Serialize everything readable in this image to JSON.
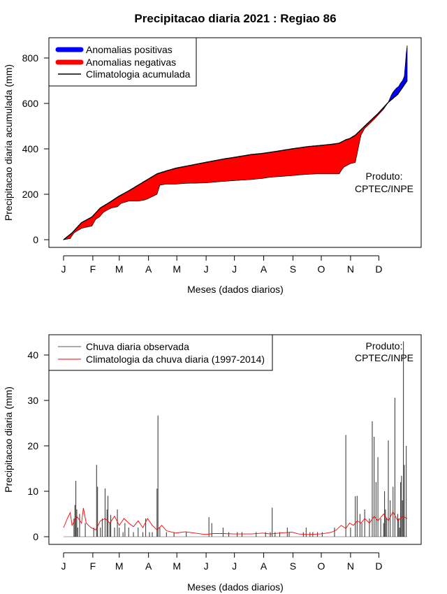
{
  "title": "Precipitacao diaria 2021 : Regiao 86",
  "colors": {
    "positive": "#0000ff",
    "negative": "#ff0000",
    "climatology_line": "#000000",
    "observed_bars": "#000000",
    "daily_climatology": "#ff0000"
  },
  "chart_data": [
    {
      "type": "area",
      "title": "",
      "xlabel": "Meses (dados diarios)",
      "ylabel": "Precipitacao diaria acumulada (mm)",
      "xlim": [
        1,
        365
      ],
      "ylim": [
        0,
        860
      ],
      "x_tick_labels": [
        "J",
        "F",
        "M",
        "A",
        "M",
        "J",
        "J",
        "A",
        "S",
        "O",
        "N",
        "D"
      ],
      "y_ticks": [
        0,
        200,
        400,
        600,
        800
      ],
      "y_tick_labels": [
        "0",
        "200",
        "400",
        "600",
        "800"
      ],
      "legend": [
        "Anomalias positivas",
        "Anomalias negativas",
        "Climatologia acumulada"
      ],
      "legend_position": "top-left",
      "annotation": [
        "Produto:",
        "CPTEC/INPE"
      ],
      "series": [
        {
          "name": "Climatologia acumulada",
          "x": [
            1,
            10,
            20,
            31,
            40,
            50,
            59,
            70,
            80,
            90,
            100,
            110,
            120,
            135,
            151,
            170,
            181,
            200,
            212,
            225,
            243,
            260,
            273,
            285,
            293,
            300,
            304,
            310,
            320,
            334,
            345,
            355,
            365
          ],
          "values": [
            0,
            30,
            75,
            100,
            140,
            165,
            190,
            215,
            240,
            265,
            290,
            303,
            315,
            327,
            340,
            355,
            362,
            375,
            380,
            388,
            400,
            410,
            415,
            420,
            425,
            440,
            445,
            460,
            500,
            555,
            605,
            640,
            700
          ]
        },
        {
          "name": "Chuva acumulada observada",
          "x": [
            1,
            8,
            12,
            20,
            25,
            31,
            35,
            39,
            43,
            47,
            52,
            58,
            62,
            70,
            80,
            87,
            90,
            95,
            100,
            103,
            110,
            120,
            130,
            151,
            165,
            181,
            200,
            212,
            220,
            230,
            243,
            250,
            260,
            270,
            280,
            288,
            293,
            296,
            298,
            305,
            310,
            312,
            316,
            320,
            330,
            340,
            345,
            348,
            350,
            353,
            356,
            358,
            360,
            362,
            363,
            364,
            365
          ],
          "values": [
            0,
            5,
            30,
            50,
            55,
            60,
            90,
            100,
            120,
            130,
            140,
            145,
            160,
            170,
            170,
            175,
            180,
            190,
            200,
            240,
            245,
            245,
            248,
            250,
            255,
            260,
            265,
            270,
            275,
            278,
            282,
            285,
            288,
            290,
            290,
            290,
            290,
            310,
            320,
            335,
            340,
            380,
            460,
            490,
            530,
            575,
            605,
            635,
            650,
            665,
            675,
            690,
            700,
            720,
            770,
            820,
            855
          ]
        }
      ]
    },
    {
      "type": "bar",
      "title": "",
      "xlabel": "Meses (dados diarios)",
      "ylabel": "Precipitacao diaria (mm)",
      "xlim": [
        1,
        365
      ],
      "ylim": [
        0,
        44
      ],
      "x_tick_labels": [
        "J",
        "F",
        "M",
        "A",
        "M",
        "J",
        "J",
        "A",
        "S",
        "O",
        "N",
        "D"
      ],
      "y_ticks": [
        0,
        10,
        20,
        30,
        40
      ],
      "y_tick_labels": [
        "0",
        "10",
        "20",
        "30",
        "40"
      ],
      "legend": [
        "Chuva diaria observada",
        "Climatologia da chuva diaria (1997-2014)"
      ],
      "legend_position": "top-left",
      "annotation": [
        "Produto:",
        "CPTEC/INPE"
      ],
      "series": [
        {
          "name": "Chuva diaria observada",
          "x": [
            12,
            13,
            14,
            15,
            16,
            18,
            24,
            33,
            36,
            37,
            40,
            42,
            45,
            47,
            48,
            50,
            51,
            55,
            58,
            60,
            64,
            66,
            70,
            75,
            80,
            85,
            88,
            92,
            95,
            100,
            101,
            103,
            110,
            118,
            131,
            155,
            158,
            170,
            176,
            185,
            190,
            205,
            215,
            220,
            222,
            225,
            230,
            238,
            240,
            255,
            258,
            262,
            265,
            270,
            275,
            288,
            300,
            305,
            310,
            312,
            315,
            317,
            320,
            325,
            328,
            330,
            332,
            334,
            337,
            340,
            341,
            342,
            343,
            345,
            347,
            350,
            352,
            355,
            356,
            357,
            358,
            359,
            360,
            361,
            362,
            364
          ],
          "values": [
            4,
            7,
            12.3,
            6,
            2,
            5,
            3,
            2,
            15.8,
            11,
            2,
            4,
            10.6,
            6,
            9,
            3,
            4.8,
            2,
            6,
            2,
            1,
            3,
            2,
            1,
            2,
            1,
            4,
            1,
            1,
            10.6,
            26.7,
            2,
            1,
            1,
            1,
            4.3,
            3,
            2,
            1,
            1,
            1,
            1,
            1,
            1,
            6.4,
            1,
            1,
            2,
            1,
            1,
            2,
            1,
            1,
            1,
            1,
            2,
            22.4,
            2,
            8.9,
            9,
            5,
            3,
            6,
            4,
            25.4,
            22,
            12,
            17.5,
            4,
            3,
            10,
            6,
            4,
            21.2,
            8,
            11,
            30.6,
            5,
            4,
            2,
            12,
            13.4,
            8,
            43,
            15.8,
            20
          ]
        },
        {
          "name": "Climatologia da chuva diaria (1997-2014)",
          "x": [
            1,
            5,
            8,
            10,
            15,
            20,
            22,
            25,
            30,
            35,
            40,
            45,
            50,
            55,
            60,
            65,
            70,
            75,
            80,
            85,
            90,
            95,
            100,
            105,
            110,
            120,
            130,
            140,
            151,
            160,
            170,
            181,
            190,
            200,
            212,
            220,
            230,
            243,
            250,
            260,
            273,
            280,
            285,
            290,
            295,
            300,
            304,
            308,
            312,
            316,
            320,
            325,
            330,
            334,
            340,
            345,
            350,
            355,
            360,
            365
          ],
          "values": [
            2,
            4,
            5.3,
            2.5,
            4.5,
            3,
            6.3,
            3,
            2,
            1.5,
            3.5,
            4,
            3,
            4.5,
            2.5,
            4,
            3,
            2.2,
            3.5,
            2,
            4,
            2.5,
            1.5,
            2.5,
            1.3,
            0.8,
            1.1,
            0.8,
            0.5,
            0.7,
            0.7,
            0.6,
            0.6,
            0.6,
            0.8,
            0.6,
            0.8,
            1,
            0.6,
            0.5,
            0.6,
            0.8,
            1,
            1.5,
            2.5,
            1.8,
            3,
            2.5,
            3.5,
            3,
            4,
            3,
            4.5,
            3.5,
            5,
            3.5,
            5.5,
            3.5,
            4.5,
            4
          ]
        }
      ]
    }
  ]
}
